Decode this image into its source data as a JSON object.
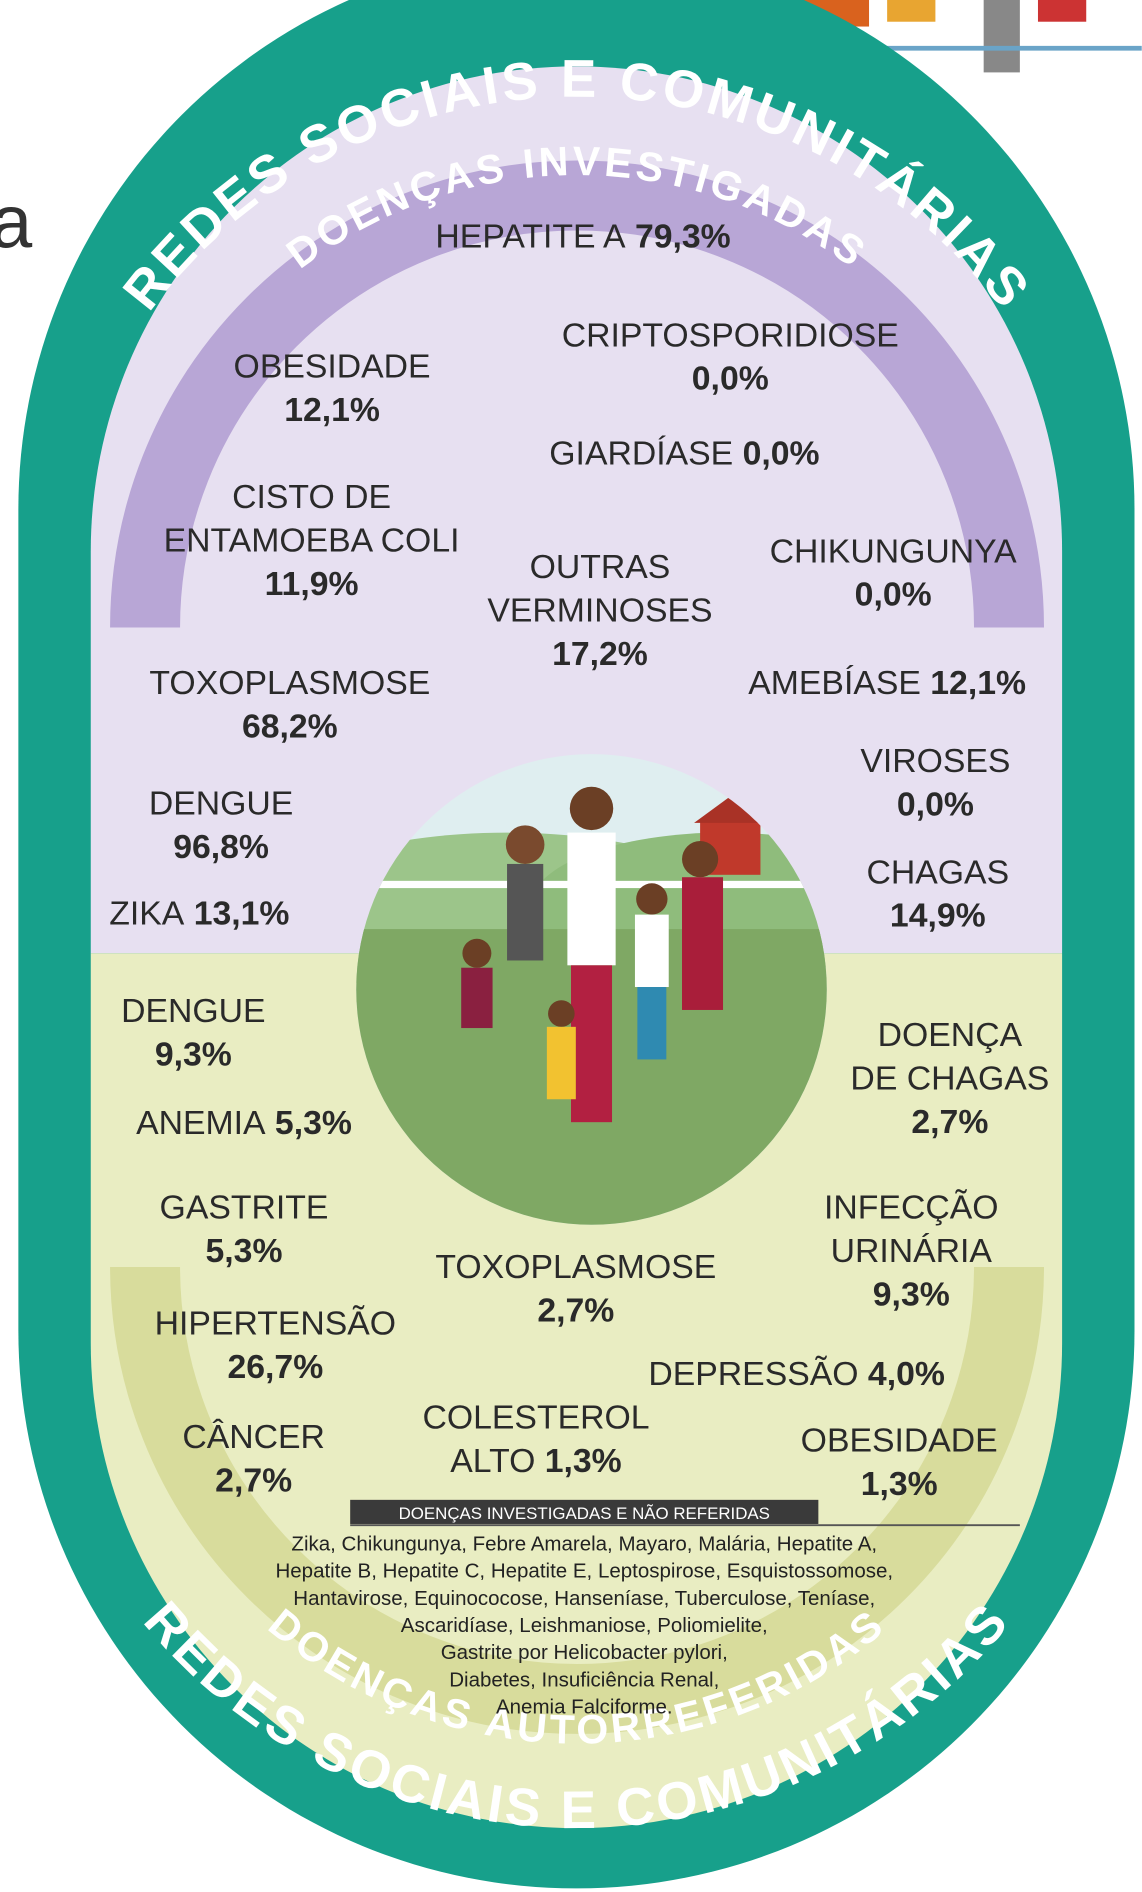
{
  "fragment": "a",
  "arcs": {
    "top_outer": "REDES SOCIAIS E COMUNITÁRIAS",
    "top_inner": "DOENÇAS INVESTIGADAS",
    "bottom_outer": "REDES SOCIAIS E COMUNITÁRIAS",
    "bottom_inner": "DOENÇAS AUTORREFERIDAS"
  },
  "investigated": [
    {
      "name": [
        "HEPATITE A"
      ],
      "value": "79,3%"
    },
    {
      "name": [
        "CRIPTOSPORIDIOSE"
      ],
      "value": "0,0%"
    },
    {
      "name": [
        "OBESIDADE"
      ],
      "value": "12,1%"
    },
    {
      "name": [
        "GIARDÍASE"
      ],
      "value": "0,0%"
    },
    {
      "name": [
        "CISTO DE",
        "ENTAMOEBA COLI"
      ],
      "value": "11,9%"
    },
    {
      "name": [
        "OUTRAS",
        "VERMINOSES"
      ],
      "value": "17,2%"
    },
    {
      "name": [
        "CHIKUNGUNYA"
      ],
      "value": "0,0%"
    },
    {
      "name": [
        "TOXOPLASMOSE"
      ],
      "value": "68,2%"
    },
    {
      "name": [
        "AMEBÍASE"
      ],
      "value": "12,1%"
    },
    {
      "name": [
        "VIROSES"
      ],
      "value": "0,0%"
    },
    {
      "name": [
        "DENGUE"
      ],
      "value": "96,8%"
    },
    {
      "name": [
        "CHAGAS"
      ],
      "value": "14,9%"
    },
    {
      "name": [
        "ZIKA"
      ],
      "value": "13,1%"
    }
  ],
  "self_reported": [
    {
      "name": [
        "DENGUE"
      ],
      "value": "9,3%"
    },
    {
      "name": [
        "DOENÇA",
        "DE CHAGAS"
      ],
      "value": "2,7%"
    },
    {
      "name": [
        "ANEMIA"
      ],
      "value": "5,3%"
    },
    {
      "name": [
        "GASTRITE"
      ],
      "value": "5,3%"
    },
    {
      "name": [
        "INFECÇÃO",
        "URINÁRIA"
      ],
      "value": "9,3%"
    },
    {
      "name": [
        "TOXOPLASMOSE"
      ],
      "value": "2,7%"
    },
    {
      "name": [
        "HIPERTENSÃO"
      ],
      "value": "26,7%"
    },
    {
      "name": [
        "DEPRESSÃO"
      ],
      "value": "4,0%"
    },
    {
      "name": [
        "COLESTEROL",
        "ALTO"
      ],
      "value": "1,3%"
    },
    {
      "name": [
        "CÂNCER"
      ],
      "value": "2,7%"
    },
    {
      "name": [
        "OBESIDADE"
      ],
      "value": "1,3%"
    }
  ],
  "note": {
    "title": "DOENÇAS INVESTIGADAS E NÃO REFERIDAS",
    "lines": [
      "Zika, Chikungunya, Febre Amarela, Mayaro, Malária, Hepatite A,",
      "Hepatite B, Hepatite C, Hepatite E, Leptospirose, Esquistossomose,",
      "Hantavirose, Equinococose, Hanseníase, Tuberculose, Teníase,",
      "Ascaridíase, Leishmaniose, Poliomielite,",
      "Gastrite por Helicobacter pylori,",
      "Diabetes, Insuficiência Renal,",
      "Anemia Falciforme."
    ]
  }
}
